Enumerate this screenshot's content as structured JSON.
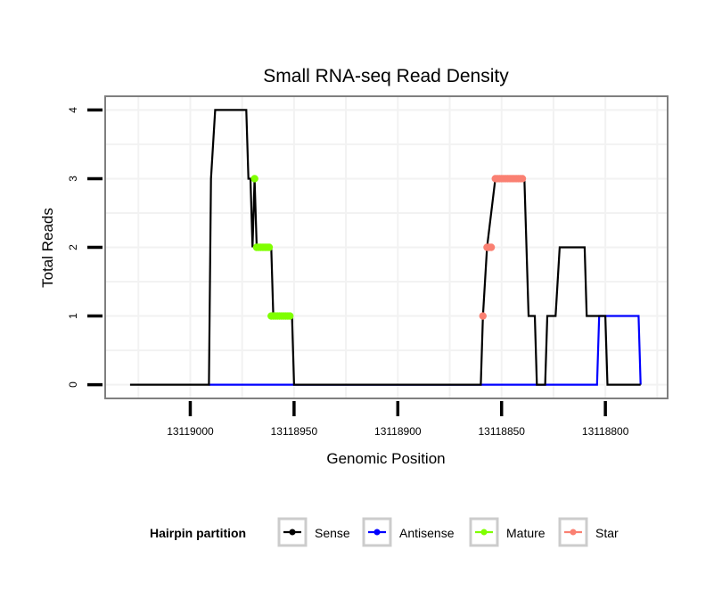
{
  "chart_data": {
    "type": "line",
    "title": "Small RNA-seq Read Density",
    "xlabel": "Genomic Position",
    "ylabel": "Total Reads",
    "x_reversed": true,
    "xlim": [
      13119041,
      13118770
    ],
    "ylim": [
      -0.2,
      4.2
    ],
    "x_ticks": [
      13119000,
      13118950,
      13118900,
      13118850,
      13118800
    ],
    "x_tick_labels": [
      "13119000",
      "13118950",
      "13118900",
      "13118850",
      "13118800"
    ],
    "y_ticks": [
      0,
      1,
      2,
      3,
      4
    ],
    "y_tick_labels": [
      "0",
      "1",
      "2",
      "3",
      "4"
    ],
    "grid": true,
    "legend": {
      "title": "Hairpin partition",
      "position": "bottom",
      "entries": [
        {
          "name": "Sense",
          "color": "#000000"
        },
        {
          "name": "Antisense",
          "color": "#0000ff"
        },
        {
          "name": "Mature",
          "color": "#7fff00"
        },
        {
          "name": "Star",
          "color": "#fa8072"
        }
      ]
    },
    "series": [
      {
        "name": "Sense",
        "kind": "line",
        "color": "#000000",
        "x": [
          13119029,
          13118991,
          13118990,
          13118988,
          13118973,
          13118972,
          13118971,
          13118970,
          13118969,
          13118968,
          13118961,
          13118960,
          13118951,
          13118950,
          13118860,
          13118859,
          13118857,
          13118853,
          13118839,
          13118837,
          13118834,
          13118833,
          13118829,
          13118828,
          13118824,
          13118822,
          13118810,
          13118809,
          13118800,
          13118799,
          13118783
        ],
        "y": [
          0,
          0,
          3,
          4,
          4,
          3,
          3,
          2,
          3,
          2,
          2,
          1,
          1,
          0,
          0,
          1,
          2,
          3,
          3,
          1,
          1,
          0,
          0,
          1,
          1,
          2,
          2,
          1,
          1,
          0,
          0
        ]
      },
      {
        "name": "Antisense",
        "kind": "line",
        "color": "#0000ff",
        "x": [
          13118991,
          13118804,
          13118803,
          13118784,
          13118783
        ],
        "y": [
          0,
          0,
          1,
          1,
          0
        ]
      },
      {
        "name": "Mature",
        "kind": "points",
        "color": "#7fff00",
        "x": [
          13118969,
          13118968,
          13118967,
          13118966,
          13118965,
          13118964,
          13118963,
          13118962,
          13118961,
          13118960,
          13118959,
          13118958,
          13118957,
          13118956,
          13118955,
          13118954,
          13118953,
          13118952
        ],
        "y": [
          3,
          2,
          2,
          2,
          2,
          2,
          2,
          2,
          1,
          1,
          1,
          1,
          1,
          1,
          1,
          1,
          1,
          1
        ]
      },
      {
        "name": "Star",
        "kind": "points",
        "color": "#fa8072",
        "x": [
          13118859,
          13118857,
          13118856,
          13118855,
          13118853,
          13118852,
          13118851,
          13118850,
          13118849,
          13118848,
          13118847,
          13118846,
          13118845,
          13118844,
          13118843,
          13118842,
          13118841,
          13118840
        ],
        "y": [
          1,
          2,
          2,
          2,
          3,
          3,
          3,
          3,
          3,
          3,
          3,
          3,
          3,
          3,
          3,
          3,
          3,
          3
        ]
      }
    ]
  }
}
